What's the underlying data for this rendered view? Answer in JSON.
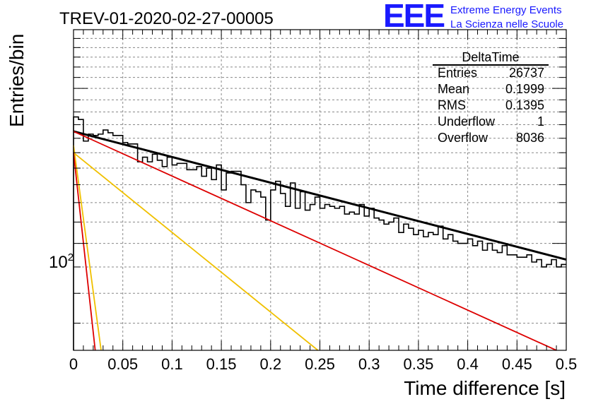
{
  "title": "TREV-01-2020-02-27-00005",
  "logo": {
    "mark": "EEE",
    "line1": "Extreme Energy Events",
    "line2": "La Scienza nelle Scuole",
    "color": "#1a1aff"
  },
  "stats": {
    "name": "DeltaTime",
    "rows": [
      {
        "label": "Entries",
        "value": "26737"
      },
      {
        "label": "Mean",
        "value": "0.1999"
      },
      {
        "label": "RMS",
        "value": "0.1395"
      },
      {
        "label": "Underflow",
        "value": "1"
      },
      {
        "label": "Overflow",
        "value": "8036"
      }
    ]
  },
  "chart_data": {
    "type": "line",
    "title": "TREV-01-2020-02-27-00005",
    "xlabel": "Time difference [s]",
    "ylabel": "Entries/bin",
    "xlim": [
      0,
      0.5
    ],
    "ylim": [
      62,
      260
    ],
    "yscale": "log",
    "grid": true,
    "x_ticks": [
      "0",
      "0.05",
      "0.1",
      "0.15",
      "0.2",
      "0.25",
      "0.3",
      "0.35",
      "0.4",
      "0.45",
      "0.5"
    ],
    "y_tick_label": "10^2",
    "histogram": {
      "bin_width": 0.005,
      "values": [
        176,
        174,
        158,
        163,
        162,
        163,
        166,
        164,
        162,
        162,
        157,
        156,
        156,
        144,
        147,
        144,
        149,
        145,
        141,
        147,
        142,
        143,
        143,
        139,
        139,
        141,
        135,
        140,
        133,
        142,
        127,
        137,
        138,
        138,
        130,
        120,
        127,
        126,
        123,
        111,
        127,
        132,
        125,
        118,
        131,
        117,
        126,
        116,
        119,
        123,
        117,
        119,
        118,
        117,
        118,
        114,
        115,
        114,
        119,
        113,
        117,
        112,
        111,
        109,
        110,
        112,
        105,
        109,
        107,
        104,
        106,
        103,
        105,
        104,
        108,
        102,
        104,
        101,
        100,
        100,
        102,
        99,
        101,
        97,
        100,
        97,
        96,
        99,
        95,
        95,
        94,
        94,
        95,
        92,
        93,
        90,
        91,
        93,
        90,
        91
      ],
      "color": "#000000"
    },
    "series": [
      {
        "kind": "total-fit",
        "color": "#000000",
        "x": [
          0,
          0.5
        ],
        "y": [
          165,
          93
        ]
      },
      {
        "kind": "component",
        "color": "#dd0000",
        "x": [
          0,
          0.49
        ],
        "y": [
          165,
          62
        ]
      },
      {
        "kind": "component",
        "color": "#f0c000",
        "x": [
          0,
          0.248
        ],
        "y": [
          150,
          62
        ]
      },
      {
        "kind": "component",
        "color": "#f0c000",
        "x": [
          0,
          0.028
        ],
        "y": [
          155,
          62
        ]
      },
      {
        "kind": "component",
        "color": "#dd0000",
        "x": [
          0,
          0.022
        ],
        "y": [
          150,
          62
        ]
      }
    ]
  }
}
